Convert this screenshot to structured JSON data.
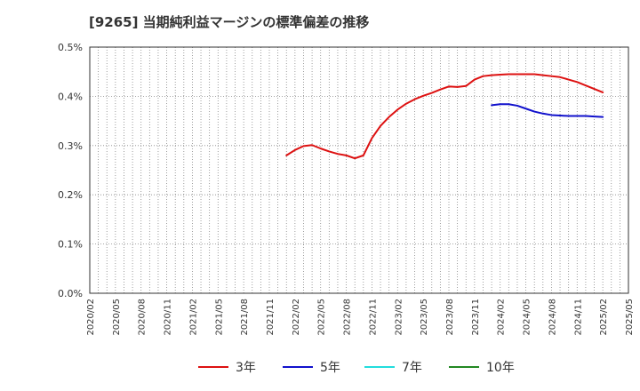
{
  "chart_data": {
    "type": "line",
    "title": "[9265]  当期純利益マージンの標準偏差の推移",
    "xlabel": "",
    "ylabel": "",
    "ylim": [
      0,
      0.5
    ],
    "grid": true,
    "legend_position": "bottom",
    "y_ticks": [
      {
        "value": 0.5,
        "label": "0.5%"
      },
      {
        "value": 0.4,
        "label": "0.4%"
      },
      {
        "value": 0.3,
        "label": "0.3%"
      },
      {
        "value": 0.2,
        "label": "0.2%"
      },
      {
        "value": 0.1,
        "label": "0.1%"
      },
      {
        "value": 0.0,
        "label": "0.0%"
      }
    ],
    "x_ticks": [
      {
        "index": 0,
        "label": "2020/02"
      },
      {
        "index": 3,
        "label": "2020/05"
      },
      {
        "index": 6,
        "label": "2020/08"
      },
      {
        "index": 9,
        "label": "2020/11"
      },
      {
        "index": 12,
        "label": "2021/02"
      },
      {
        "index": 15,
        "label": "2021/05"
      },
      {
        "index": 18,
        "label": "2021/08"
      },
      {
        "index": 21,
        "label": "2021/11"
      },
      {
        "index": 24,
        "label": "2022/02"
      },
      {
        "index": 27,
        "label": "2022/05"
      },
      {
        "index": 30,
        "label": "2022/08"
      },
      {
        "index": 33,
        "label": "2022/11"
      },
      {
        "index": 36,
        "label": "2023/02"
      },
      {
        "index": 39,
        "label": "2023/05"
      },
      {
        "index": 42,
        "label": "2023/08"
      },
      {
        "index": 45,
        "label": "2023/11"
      },
      {
        "index": 48,
        "label": "2024/02"
      },
      {
        "index": 51,
        "label": "2024/05"
      },
      {
        "index": 54,
        "label": "2024/08"
      },
      {
        "index": 57,
        "label": "2024/11"
      },
      {
        "index": 60,
        "label": "2025/02"
      },
      {
        "index": 63,
        "label": "2025/05"
      }
    ],
    "x_range": [
      0,
      63
    ],
    "series": [
      {
        "name": "3年",
        "color": "#dd1111",
        "points": [
          [
            23,
            0.28
          ],
          [
            24,
            0.291
          ],
          [
            25,
            0.299
          ],
          [
            26,
            0.301
          ],
          [
            27,
            0.294
          ],
          [
            28,
            0.288
          ],
          [
            29,
            0.283
          ],
          [
            30,
            0.28
          ],
          [
            31,
            0.274
          ],
          [
            32,
            0.28
          ],
          [
            33,
            0.315
          ],
          [
            34,
            0.34
          ],
          [
            35,
            0.358
          ],
          [
            36,
            0.373
          ],
          [
            37,
            0.385
          ],
          [
            38,
            0.394
          ],
          [
            39,
            0.401
          ],
          [
            40,
            0.407
          ],
          [
            41,
            0.414
          ],
          [
            42,
            0.42
          ],
          [
            43,
            0.419
          ],
          [
            44,
            0.421
          ],
          [
            45,
            0.434
          ],
          [
            46,
            0.441
          ],
          [
            47,
            0.443
          ],
          [
            48,
            0.444
          ],
          [
            49,
            0.445
          ],
          [
            50,
            0.445
          ],
          [
            51,
            0.445
          ],
          [
            52,
            0.445
          ],
          [
            53,
            0.443
          ],
          [
            54,
            0.441
          ],
          [
            55,
            0.439
          ],
          [
            56,
            0.434
          ],
          [
            57,
            0.429
          ],
          [
            58,
            0.422
          ],
          [
            59,
            0.415
          ],
          [
            60,
            0.408
          ]
        ]
      },
      {
        "name": "5年",
        "color": "#1111cc",
        "points": [
          [
            47,
            0.382
          ],
          [
            48,
            0.384
          ],
          [
            49,
            0.384
          ],
          [
            50,
            0.381
          ],
          [
            51,
            0.375
          ],
          [
            52,
            0.369
          ],
          [
            53,
            0.365
          ],
          [
            54,
            0.362
          ],
          [
            55,
            0.361
          ],
          [
            56,
            0.36
          ],
          [
            57,
            0.36
          ],
          [
            58,
            0.36
          ],
          [
            59,
            0.359
          ],
          [
            60,
            0.358
          ]
        ]
      },
      {
        "name": "7年",
        "color": "#22dddd",
        "points": []
      },
      {
        "name": "10年",
        "color": "#228822",
        "points": []
      }
    ]
  }
}
